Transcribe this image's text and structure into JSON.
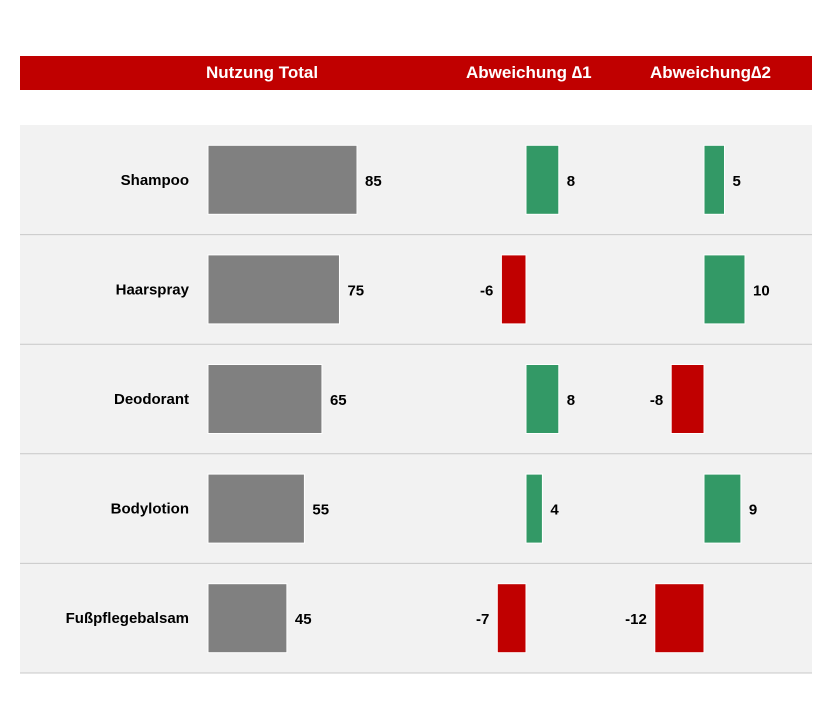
{
  "header": {
    "col_total": "Nutzung Total",
    "col_delta1": "Abweichung ∆1",
    "col_delta2": "Abweichung∆2"
  },
  "colors": {
    "header_bg": "#c00000",
    "header_text": "#ffffff",
    "row_bg": "#f2f2f2",
    "separator": "#c8c8c8",
    "total_bar": "#808080",
    "positive": "#339966",
    "negative": "#c00000"
  },
  "chart_data": {
    "type": "bar",
    "categories": [
      "Shampoo",
      "Haarspray",
      "Deodorant",
      "Bodylotion",
      "Fußpflegebalsam"
    ],
    "series": [
      {
        "name": "Nutzung Total",
        "values": [
          85,
          75,
          65,
          55,
          45
        ]
      },
      {
        "name": "Abweichung ∆1",
        "values": [
          8,
          -6,
          8,
          4,
          -7
        ]
      },
      {
        "name": "Abweichung∆2",
        "values": [
          5,
          10,
          -8,
          9,
          -12
        ]
      }
    ]
  }
}
